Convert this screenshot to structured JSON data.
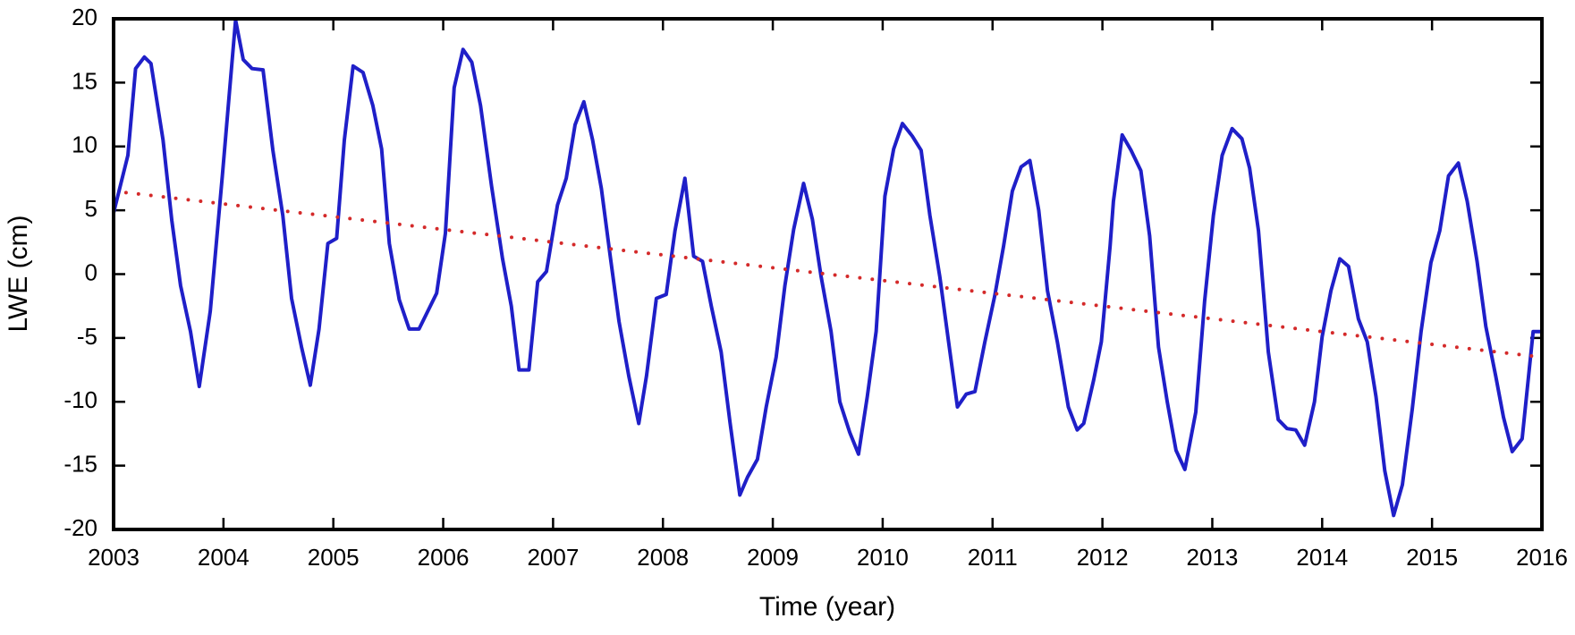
{
  "chart_data": {
    "type": "line",
    "x_label": "Time (year)",
    "y_label": "LWE (cm)",
    "xlim": [
      2003,
      2016
    ],
    "ylim": [
      -20,
      20
    ],
    "xticks": [
      2003,
      2004,
      2005,
      2006,
      2007,
      2008,
      2009,
      2010,
      2011,
      2012,
      2013,
      2014,
      2015,
      2016
    ],
    "yticks": [
      -20,
      -15,
      -10,
      -5,
      0,
      5,
      10,
      15,
      20
    ],
    "grid": false,
    "series": [
      {
        "color": "#1f1fc8",
        "style": "solid",
        "x": [
          2003.0,
          2003.13,
          2003.2,
          2003.28,
          2003.34,
          2003.45,
          2003.53,
          2003.61,
          2003.7,
          2003.78,
          2003.88,
          2003.99,
          2004.11,
          2004.18,
          2004.26,
          2004.36,
          2004.45,
          2004.54,
          2004.62,
          2004.71,
          2004.79,
          2004.87,
          2004.95,
          2005.03,
          2005.1,
          2005.18,
          2005.27,
          2005.36,
          2005.44,
          2005.51,
          2005.6,
          2005.69,
          2005.78,
          2005.94,
          2006.02,
          2006.1,
          2006.18,
          2006.26,
          2006.34,
          2006.44,
          2006.54,
          2006.62,
          2006.69,
          2006.78,
          2006.86,
          2006.94,
          2007.04,
          2007.12,
          2007.2,
          2007.28,
          2007.36,
          2007.44,
          2007.52,
          2007.6,
          2007.69,
          2007.78,
          2007.85,
          2007.94,
          2008.03,
          2008.11,
          2008.2,
          2008.28,
          2008.36,
          2008.44,
          2008.53,
          2008.61,
          2008.7,
          2008.77,
          2008.86,
          2008.94,
          2009.03,
          2009.11,
          2009.19,
          2009.28,
          2009.36,
          2009.44,
          2009.53,
          2009.61,
          2009.7,
          2009.78,
          2009.86,
          2009.94,
          2010.02,
          2010.1,
          2010.18,
          2010.27,
          2010.35,
          2010.43,
          2010.52,
          2010.6,
          2010.68,
          2010.76,
          2010.84,
          2010.93,
          2011.02,
          2011.1,
          2011.18,
          2011.26,
          2011.34,
          2011.42,
          2011.5,
          2011.59,
          2011.69,
          2011.77,
          2011.83,
          2011.92,
          2011.99,
          2012.07,
          2012.1,
          2012.18,
          2012.26,
          2012.35,
          2012.43,
          2012.51,
          2012.59,
          2012.67,
          2012.75,
          2012.85,
          2012.93,
          2013.01,
          2013.09,
          2013.18,
          2013.27,
          2013.34,
          2013.42,
          2013.51,
          2013.6,
          2013.68,
          2013.76,
          2013.84,
          2013.93,
          2014.0,
          2014.08,
          2014.16,
          2014.24,
          2014.33,
          2014.41,
          2014.49,
          2014.57,
          2014.65,
          2014.73,
          2014.82,
          2014.9,
          2014.99,
          2015.07,
          2015.15,
          2015.24,
          2015.32,
          2015.41,
          2015.49,
          2015.58,
          2015.65,
          2015.73,
          2015.82,
          2015.92,
          2016.0
        ],
        "values": [
          4.8,
          9.3,
          16.1,
          17.0,
          16.5,
          10.5,
          4.2,
          -0.9,
          -4.5,
          -8.8,
          -2.9,
          7.7,
          19.9,
          16.8,
          16.1,
          16.0,
          9.7,
          4.6,
          -1.9,
          -5.7,
          -8.7,
          -4.3,
          2.4,
          2.8,
          10.5,
          16.3,
          15.8,
          13.2,
          9.8,
          2.4,
          -2.0,
          -4.3,
          -4.3,
          -1.5,
          3.2,
          14.6,
          17.6,
          16.6,
          13.2,
          6.9,
          1.2,
          -2.5,
          -7.5,
          -7.5,
          -0.6,
          0.2,
          5.4,
          7.5,
          11.7,
          13.5,
          10.5,
          6.7,
          1.4,
          -3.7,
          -8.0,
          -11.7,
          -8.0,
          -1.9,
          -1.6,
          3.4,
          7.5,
          1.4,
          1.0,
          -2.5,
          -6.1,
          -11.6,
          -17.3,
          -15.9,
          -14.5,
          -10.4,
          -6.5,
          -0.9,
          3.5,
          7.1,
          4.3,
          -0.2,
          -4.5,
          -10.0,
          -12.4,
          -14.1,
          -9.6,
          -4.5,
          6.1,
          9.8,
          11.8,
          10.8,
          9.7,
          4.6,
          -0.2,
          -5.3,
          -10.4,
          -9.4,
          -9.2,
          -5.3,
          -1.7,
          2.2,
          6.5,
          8.4,
          8.9,
          5.0,
          -1.3,
          -5.3,
          -10.4,
          -12.2,
          -11.7,
          -8.3,
          -5.3,
          2.2,
          5.7,
          10.9,
          9.7,
          8.1,
          3.0,
          -5.7,
          -10.0,
          -13.8,
          -15.3,
          -10.8,
          -2.1,
          4.6,
          9.3,
          11.4,
          10.6,
          8.3,
          3.4,
          -6.1,
          -11.4,
          -12.1,
          -12.2,
          -13.4,
          -10.0,
          -4.9,
          -1.3,
          1.2,
          0.6,
          -3.5,
          -5.3,
          -9.6,
          -15.4,
          -18.9,
          -16.5,
          -10.6,
          -4.5,
          0.9,
          3.4,
          7.7,
          8.7,
          5.7,
          1.0,
          -4.1,
          -8.0,
          -11.2,
          -13.9,
          -12.9,
          -4.5,
          -4.5
        ]
      },
      {
        "color": "#d42a2a",
        "style": "dotted",
        "x": [
          2003,
          2016
        ],
        "values": [
          6.5,
          -6.5
        ]
      }
    ]
  }
}
